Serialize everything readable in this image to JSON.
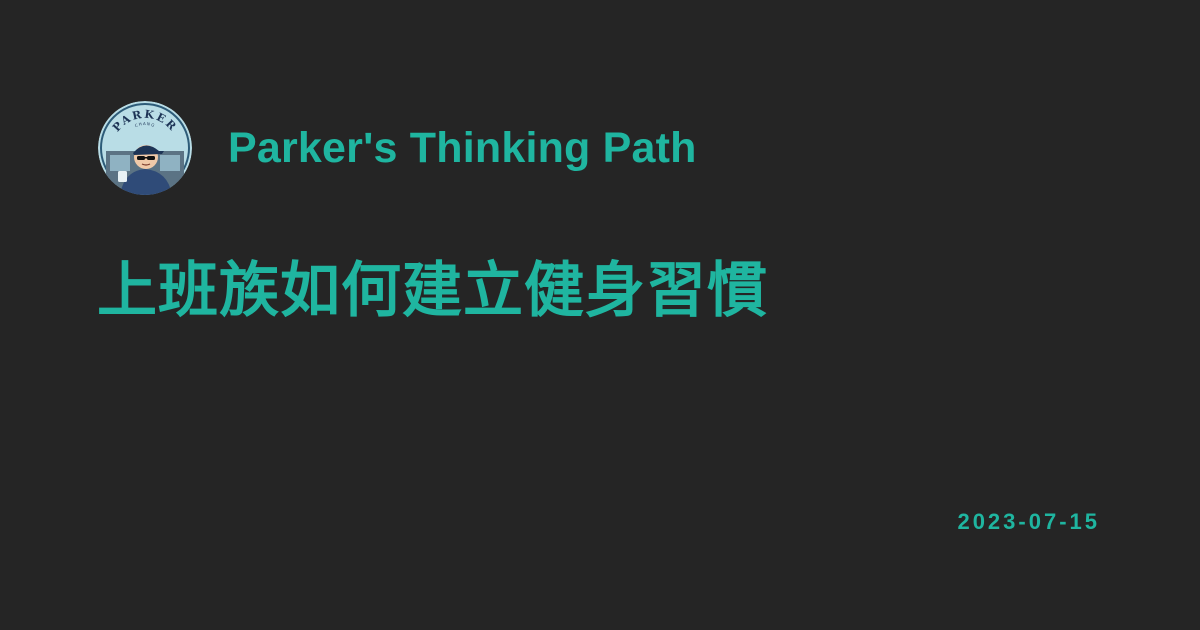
{
  "site": {
    "name": "Parker's Thinking Path",
    "logo_text": "PARKER",
    "logo_subtext": "CHANG"
  },
  "post": {
    "title": "上班族如何建立健身習慣",
    "date": "2023-07-15"
  },
  "colors": {
    "background": "#252525",
    "accent": "#1fb5a0"
  }
}
